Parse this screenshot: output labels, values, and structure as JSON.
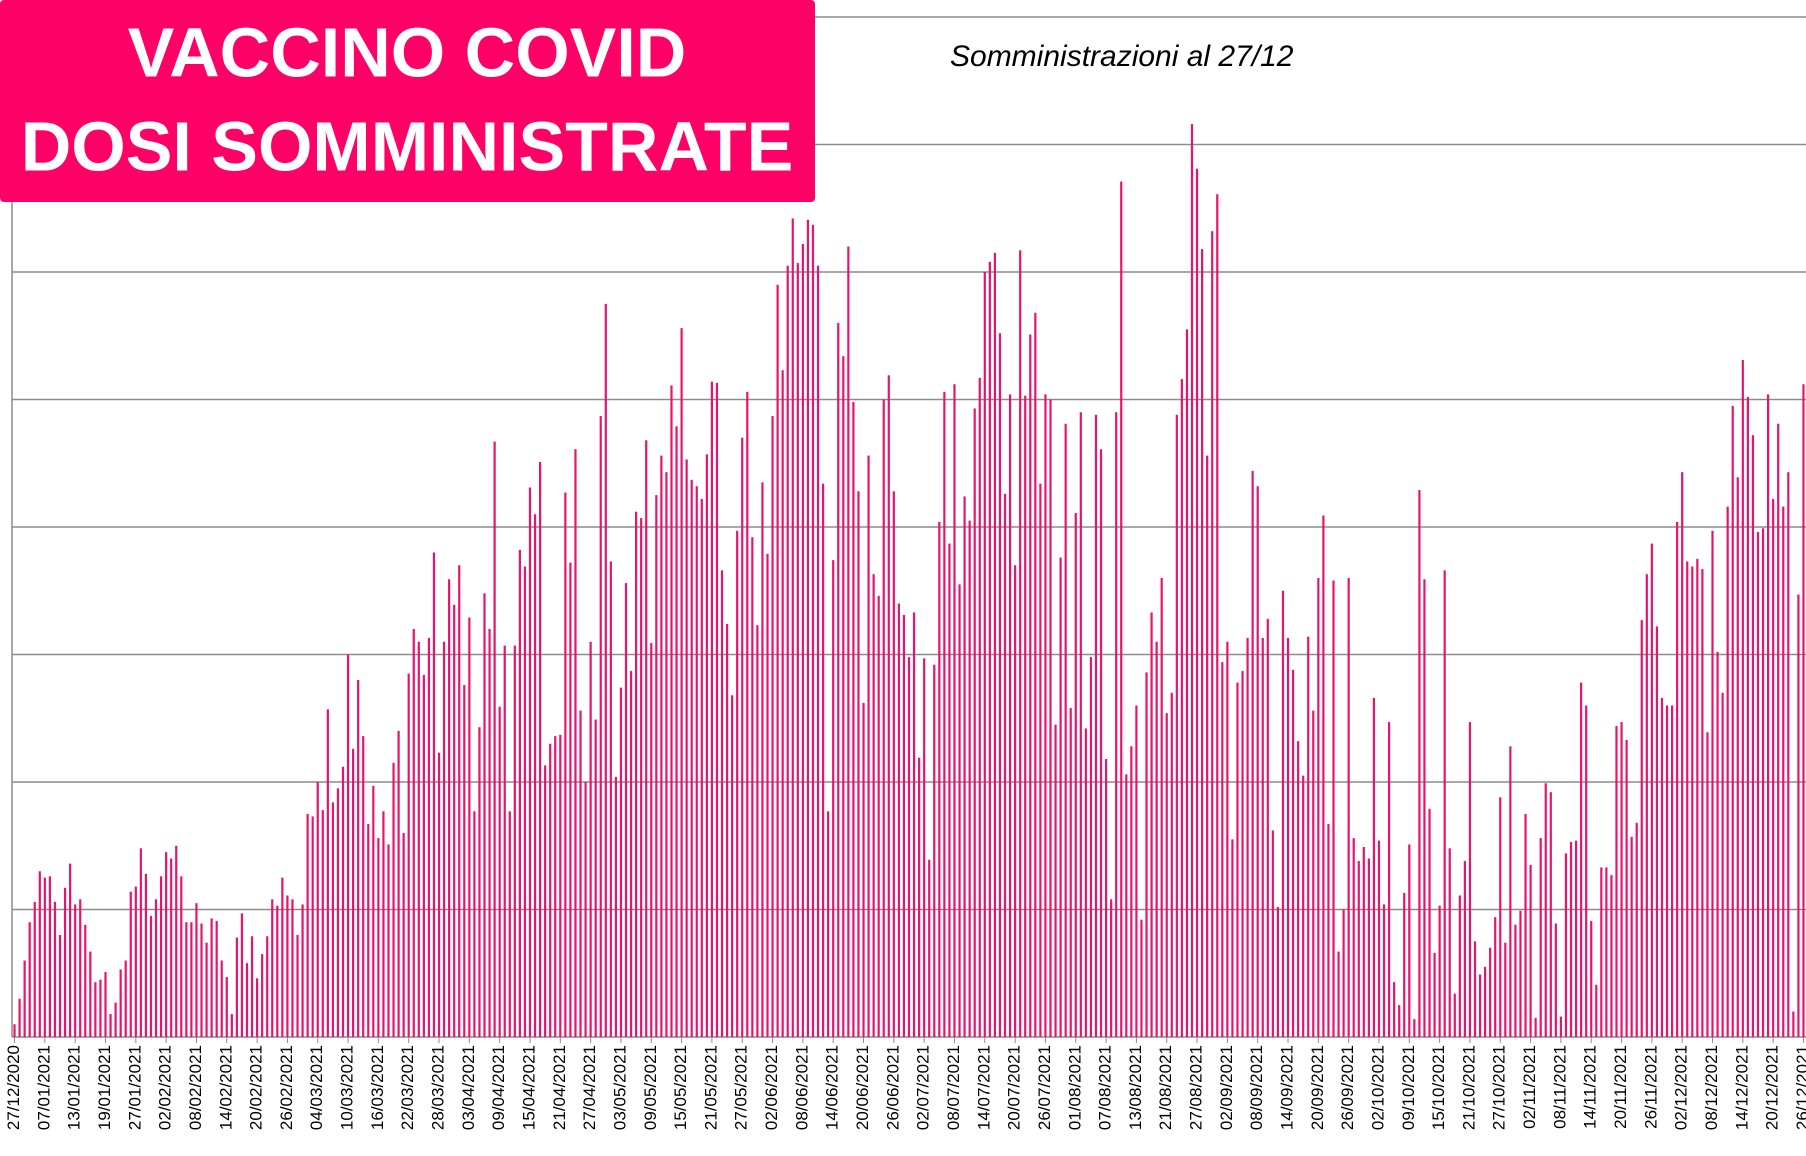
{
  "chart_data": {
    "type": "bar",
    "title": [
      "VACCINO COVID",
      "DOSI SOMMINISTRATE"
    ],
    "subtitle": "Somministrazioni al 27/12",
    "color": "#e8146c",
    "title_box_color": "#ff0066",
    "grid": true,
    "ylim": [
      0,
      8
    ],
    "yticks": [
      0,
      1,
      2,
      3,
      4,
      5,
      6,
      7,
      8
    ],
    "categories": [
      "27/12/2020",
      null,
      null,
      null,
      null,
      null,
      "07/01/2021",
      null,
      null,
      null,
      null,
      null,
      "13/01/2021",
      null,
      null,
      null,
      null,
      null,
      "19/01/2021",
      null,
      null,
      null,
      null,
      null,
      "27/01/2021",
      null,
      null,
      null,
      null,
      null,
      "02/02/2021",
      null,
      null,
      null,
      null,
      null,
      "08/02/2021",
      null,
      null,
      null,
      null,
      null,
      "14/02/2021",
      null,
      null,
      null,
      null,
      null,
      "20/02/2021",
      null,
      null,
      null,
      null,
      null,
      "26/02/2021",
      null,
      null,
      null,
      null,
      null,
      "04/03/2021",
      null,
      null,
      null,
      null,
      null,
      "10/03/2021",
      null,
      null,
      null,
      null,
      null,
      "16/03/2021",
      null,
      null,
      null,
      null,
      null,
      "22/03/2021",
      null,
      null,
      null,
      null,
      null,
      "28/03/2021",
      null,
      null,
      null,
      null,
      null,
      "03/04/2021",
      null,
      null,
      null,
      null,
      null,
      "09/04/2021",
      null,
      null,
      null,
      null,
      null,
      "15/04/2021",
      null,
      null,
      null,
      null,
      null,
      "21/04/2021",
      null,
      null,
      null,
      null,
      null,
      "27/04/2021",
      null,
      null,
      null,
      null,
      null,
      "03/05/2021",
      null,
      null,
      null,
      null,
      null,
      "09/05/2021",
      null,
      null,
      null,
      null,
      null,
      "15/05/2021",
      null,
      null,
      null,
      null,
      null,
      "21/05/2021",
      null,
      null,
      null,
      null,
      null,
      "27/05/2021",
      null,
      null,
      null,
      null,
      null,
      "02/06/2021",
      null,
      null,
      null,
      null,
      null,
      "08/06/2021",
      null,
      null,
      null,
      null,
      null,
      "14/06/2021",
      null,
      null,
      null,
      null,
      null,
      "20/06/2021",
      null,
      null,
      null,
      null,
      null,
      "26/06/2021",
      null,
      null,
      null,
      null,
      null,
      "02/07/2021",
      null,
      null,
      null,
      null,
      null,
      "08/07/2021",
      null,
      null,
      null,
      null,
      null,
      "14/07/2021",
      null,
      null,
      null,
      null,
      null,
      "20/07/2021",
      null,
      null,
      null,
      null,
      null,
      "26/07/2021",
      null,
      null,
      null,
      null,
      null,
      "01/08/2021",
      null,
      null,
      null,
      null,
      null,
      "07/08/2021",
      null,
      null,
      null,
      null,
      null,
      "13/08/2021",
      null,
      null,
      null,
      null,
      null,
      "21/08/2021",
      null,
      null,
      null,
      null,
      null,
      "27/08/2021",
      null,
      null,
      null,
      null,
      null,
      "02/09/2021",
      null,
      null,
      null,
      null,
      null,
      "08/09/2021",
      null,
      null,
      null,
      null,
      null,
      "14/09/2021",
      null,
      null,
      null,
      null,
      null,
      "20/09/2021",
      null,
      null,
      null,
      null,
      null,
      "26/09/2021",
      null,
      null,
      null,
      null,
      null,
      "02/10/2021",
      null,
      null,
      null,
      null,
      null,
      "09/10/2021",
      null,
      null,
      null,
      null,
      null,
      "15/10/2021",
      null,
      null,
      null,
      null,
      null,
      "21/10/2021",
      null,
      null,
      null,
      null,
      null,
      "27/10/2021",
      null,
      null,
      null,
      null,
      null,
      "02/11/2021",
      null,
      null,
      null,
      null,
      null,
      "08/11/2021",
      null,
      null,
      null,
      null,
      null,
      "14/11/2021",
      null,
      null,
      null,
      null,
      null,
      "20/11/2021",
      null,
      null,
      null,
      null,
      null,
      "26/11/2021",
      null,
      null,
      null,
      null,
      null,
      "02/12/2021",
      null,
      null,
      null,
      null,
      null,
      "08/12/2021",
      null,
      null,
      null,
      null,
      null,
      "14/12/2021",
      null,
      null,
      null,
      null,
      null,
      "20/12/2021",
      null,
      null,
      null,
      null,
      null,
      "26/12/2021"
    ],
    "values": [
      0.1,
      0.3,
      0.6,
      0.9,
      1.06,
      1.3,
      1.25,
      1.26,
      1.06,
      0.8,
      1.17,
      1.36,
      1.04,
      1.08,
      0.88,
      0.67,
      0.43,
      0.45,
      0.51,
      0.18,
      0.27,
      0.53,
      0.6,
      1.14,
      1.18,
      1.48,
      1.28,
      0.95,
      1.08,
      1.26,
      1.45,
      1.4,
      1.5,
      1.26,
      0.9,
      0.9,
      1.05,
      0.89,
      0.74,
      0.93,
      0.91,
      0.6,
      0.47,
      0.18,
      0.78,
      0.97,
      0.58,
      0.79,
      0.46,
      0.65,
      0.79,
      1.08,
      1.03,
      1.25,
      1.11,
      1.08,
      0.8,
      1.04,
      1.75,
      1.73,
      2.0,
      1.78,
      2.57,
      1.84,
      1.95,
      2.12,
      3.0,
      2.26,
      2.8,
      2.36,
      1.67,
      1.97,
      1.56,
      1.77,
      1.51,
      2.15,
      2.4,
      1.6,
      2.85,
      3.2,
      3.1,
      2.84,
      3.13,
      3.8,
      2.23,
      3.1,
      3.59,
      3.39,
      3.7,
      2.76,
      3.29,
      1.77,
      2.43,
      3.48,
      3.2,
      4.67,
      2.59,
      3.07,
      1.77,
      3.07,
      3.82,
      3.69,
      4.31,
      4.1,
      4.51,
      2.13,
      2.3,
      2.36,
      2.37,
      4.27,
      3.72,
      4.61,
      2.56,
      2.0,
      3.1,
      2.49,
      4.87,
      5.75,
      3.73,
      2.04,
      2.74,
      3.56,
      2.87,
      4.12,
      4.07,
      4.68,
      3.09,
      4.25,
      4.56,
      4.43,
      5.11,
      4.79,
      5.56,
      4.53,
      4.37,
      4.32,
      4.22,
      4.57,
      5.14,
      5.13,
      3.66,
      3.24,
      2.68,
      3.97,
      4.7,
      5.06,
      3.92,
      3.23,
      4.35,
      3.79,
      4.87,
      5.9,
      5.23,
      6.05,
      6.42,
      6.07,
      6.22,
      6.41,
      6.37,
      6.05,
      4.34,
      1.77,
      3.74,
      5.6,
      5.34,
      6.2,
      4.98,
      4.28,
      2.62,
      4.56,
      3.63,
      3.46,
      5.0,
      5.19,
      4.28,
      3.4,
      3.31,
      2.98,
      3.33,
      2.19,
      2.97,
      1.39,
      2.92,
      4.04,
      5.06,
      3.87,
      5.12,
      3.55,
      4.24,
      4.05,
      4.93,
      5.17,
      6.0,
      6.08,
      6.15,
      5.52,
      4.26,
      5.04,
      3.7,
      6.17,
      5.03,
      5.51,
      5.68,
      4.34,
      5.04,
      5.0,
      2.45,
      3.76,
      4.81,
      2.58,
      4.11,
      4.9,
      2.42,
      2.98,
      4.88,
      4.61,
      2.18,
      1.08,
      4.9,
      6.71,
      2.06,
      2.28,
      2.6,
      0.92,
      2.86,
      3.33,
      3.1,
      3.6,
      2.54,
      2.7,
      4.88,
      5.16,
      5.55,
      7.16,
      6.81,
      6.18,
      4.56,
      6.32,
      6.61,
      2.94,
      3.1,
      1.55,
      2.78,
      2.87,
      3.13,
      4.44,
      4.32,
      3.13,
      3.28,
      1.62,
      1.02,
      3.5,
      3.13,
      2.88,
      2.32,
      2.05,
      3.14,
      2.56,
      3.6,
      4.09,
      1.67,
      3.58,
      0.67,
      1.0,
      3.6,
      1.56,
      1.38,
      1.49,
      1.4,
      2.66,
      1.54,
      1.04,
      2.47,
      0.43,
      0.25,
      1.13,
      1.51,
      0.14,
      4.29,
      3.59,
      1.79,
      0.66,
      1.03,
      3.66,
      1.48,
      0.34,
      1.11,
      1.38,
      2.47,
      0.75,
      0.49,
      0.55,
      0.7,
      0.94,
      1.88,
      0.74,
      2.28,
      0.88,
      0.99,
      1.75,
      1.35,
      0.15,
      1.56,
      1.99,
      1.92,
      0.89,
      0.16,
      1.44,
      1.53,
      1.54,
      2.78,
      2.6,
      0.91,
      0.41,
      1.33,
      1.33,
      1.27,
      2.44,
      2.47,
      2.33,
      1.57,
      1.68,
      3.27,
      3.63,
      3.87,
      3.22,
      2.66,
      2.6,
      2.6,
      4.04,
      4.43,
      3.73,
      3.69,
      3.75,
      3.67,
      2.39,
      3.97,
      3.02,
      2.7,
      4.16,
      4.95,
      4.39,
      5.31,
      5.02,
      4.72,
      3.96,
      3.99,
      5.04,
      4.22,
      4.81,
      4.16,
      4.43,
      0.2,
      3.47,
      5.12
    ]
  }
}
